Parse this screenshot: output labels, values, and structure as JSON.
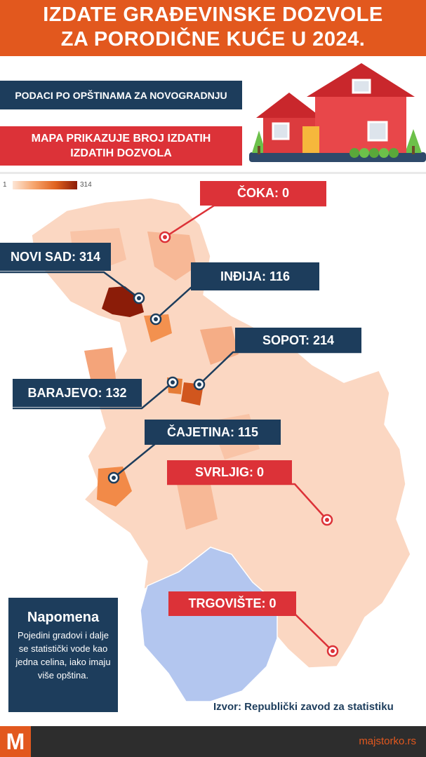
{
  "title": {
    "line1": "IZDATE GRAĐEVINSKE DOZVOLE",
    "line2": "ZA PORODIČNE KUĆE U 2024."
  },
  "info": {
    "subtitle": "PODACI PO OPŠTINAMA ZA NOVOGRADNJU",
    "map_note": "MAPA PRIKAZUJE BROJ IZDATIH IZDATIH DOZVOLA"
  },
  "legend": {
    "min": "1",
    "max": "314"
  },
  "callouts": [
    {
      "name": "ČOKA",
      "value": 0,
      "text": "ČOKA: 0"
    },
    {
      "name": "NOVI SAD",
      "value": 314,
      "text": "NOVI SAD: 314"
    },
    {
      "name": "INĐIJA",
      "value": 116,
      "text": "INĐIJA: 116"
    },
    {
      "name": "SOPOT",
      "value": 214,
      "text": "SOPOT: 214"
    },
    {
      "name": "BARAJEVO",
      "value": 132,
      "text": "BARAJEVO: 132"
    },
    {
      "name": "ČAJETINA",
      "value": 115,
      "text": "ČAJETINA: 115"
    },
    {
      "name": "SVRLJIG",
      "value": 0,
      "text": "SVRLJIG: 0"
    },
    {
      "name": "TRGOVIŠTE",
      "value": 0,
      "text": "TRGOVIŠTE: 0"
    }
  ],
  "note": {
    "heading": "Napomena",
    "body": "Pojedini gradovi i dalje se statistički vode kao jedna celina, iako imaju više opština."
  },
  "source": "Izvor: Republički zavod za statistiku",
  "footer": {
    "logo": "M",
    "site": "majstorko.rs"
  },
  "colors": {
    "brand_orange": "#e2581e",
    "navy": "#1d3d5c",
    "red": "#dc3238",
    "kosovo_blue": "#b3c6ef",
    "scale_low": "#fde6d6",
    "scale_high": "#8b1c08"
  }
}
